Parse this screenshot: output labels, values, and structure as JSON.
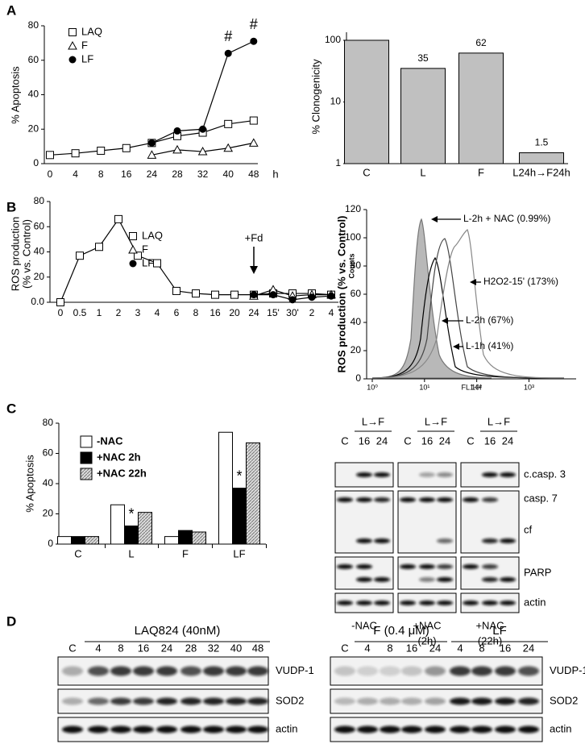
{
  "panels": {
    "a": "A",
    "b": "B",
    "c": "C",
    "d": "D"
  },
  "chart_data": [
    {
      "type": "line",
      "ylabel": "% Apoptosis",
      "x_unit": "h",
      "categories": [
        "0",
        "4",
        "8",
        "16",
        "24",
        "28",
        "32",
        "40",
        "48"
      ],
      "series": [
        {
          "name": "LAQ",
          "marker": "square",
          "color": "#000000",
          "values": [
            5,
            6,
            7.5,
            9,
            12,
            16,
            18,
            23,
            25
          ]
        },
        {
          "name": "F",
          "marker": "triangle",
          "color": "#000000",
          "values": [
            null,
            null,
            null,
            null,
            5,
            8,
            7,
            9,
            12
          ]
        },
        {
          "name": "LF",
          "marker": "circle",
          "color": "#000000",
          "values": [
            null,
            null,
            null,
            null,
            12,
            19,
            20,
            64,
            71
          ]
        }
      ],
      "ylim": [
        0,
        80
      ],
      "yticks": [
        0,
        20,
        40,
        60,
        80
      ],
      "annotations": [
        "#",
        "#"
      ]
    },
    {
      "type": "bar",
      "ylabel": "% Clonogenicity",
      "log": true,
      "categories": [
        "C",
        "L",
        "F",
        "L24h→F24h"
      ],
      "values": [
        100,
        35,
        62,
        1.5
      ],
      "value_labels": [
        null,
        "35",
        "62",
        "1.5"
      ],
      "color": "#c0c0c0",
      "ylim": [
        1,
        135
      ],
      "yticks": [
        1,
        10,
        100
      ]
    },
    {
      "type": "line",
      "ylabel": [
        "ROS production",
        "(% vs. Control)"
      ],
      "categories": [
        "0",
        "0.5",
        "1",
        "2",
        "3",
        "4",
        "6",
        "8",
        "16",
        "20",
        "24",
        "15'",
        "30'",
        "2",
        "4"
      ],
      "series": [
        {
          "name": "LAQ",
          "marker": "square",
          "color": "#000000",
          "values": [
            0,
            37,
            44,
            66,
            37,
            31,
            9,
            7,
            6,
            6,
            6,
            7,
            7,
            7,
            6
          ]
        },
        {
          "name": "F",
          "marker": "triangle",
          "color": "#000000",
          "values": [
            null,
            null,
            null,
            null,
            null,
            null,
            null,
            null,
            null,
            null,
            5,
            10,
            5,
            6,
            6
          ]
        },
        {
          "name": "LF",
          "marker": "circle",
          "color": "#000000",
          "values": [
            null,
            null,
            null,
            null,
            null,
            null,
            null,
            null,
            null,
            null,
            6,
            6,
            2,
            4,
            5
          ]
        }
      ],
      "ylim": [
        0,
        80
      ],
      "yticks": [
        {
          "value": 0,
          "label": "0.0"
        },
        20,
        40,
        60,
        80
      ],
      "annotations": [
        "+Fd"
      ]
    },
    {
      "type": "flow",
      "ylabel": "ROS production (% vs. Control)",
      "counts_label": "Counts",
      "xlabel": "FL1-H",
      "log_x": true,
      "xlim": [
        1,
        8000
      ],
      "xticks": [
        {
          "value": 1,
          "label": "10⁰"
        },
        {
          "value": 10,
          "label": "10¹"
        },
        {
          "value": 100,
          "label": "10²"
        },
        {
          "value": 1000,
          "label": "10³"
        }
      ],
      "ylim": [
        0,
        120
      ],
      "yticks": [
        0,
        20,
        40,
        60,
        80,
        100,
        120
      ],
      "annotations": [
        "L-2h + NAC (0.99%)",
        "H2O2-15' (173%)",
        "L-2h (67%)",
        "L-1h (41%)"
      ]
    },
    {
      "type": "grouped-bar",
      "ylabel": "% Apoptosis",
      "categories": [
        "C",
        "L",
        "F",
        "LF"
      ],
      "series": [
        {
          "name": "-NAC",
          "color": "#ffffff",
          "values": [
            5,
            26,
            5,
            74
          ]
        },
        {
          "name": "+NAC 2h",
          "color": "#000000",
          "values": [
            5,
            12,
            9,
            37
          ]
        },
        {
          "name": "+NAC 22h",
          "color": "#bbbbbb",
          "hatch": true,
          "values": [
            5,
            21,
            8,
            67
          ]
        }
      ],
      "ylim": [
        0,
        80
      ],
      "yticks": [
        0,
        20,
        40,
        60,
        80
      ],
      "annotations": [
        "*",
        "*"
      ]
    }
  ],
  "blots_c": {
    "groups": [
      {
        "header": "L→F",
        "lanes": [
          "C",
          "16",
          "24"
        ],
        "name": [
          "-NAC"
        ]
      },
      {
        "header": "L→F",
        "lanes": [
          "C",
          "16",
          "24"
        ],
        "name": [
          "+NAC",
          "(2h)"
        ]
      },
      {
        "header": "L→F",
        "lanes": [
          "C",
          "16",
          "24"
        ],
        "name": [
          "+NAC",
          "(22h)"
        ]
      }
    ],
    "rows": [
      "c.casp. 3",
      "casp. 7",
      "cf",
      "PARP",
      "actin"
    ]
  },
  "blots_d": {
    "left_header": "LAQ824 (40nM)",
    "left_lanes": [
      "C",
      "4",
      "8",
      "16",
      "24",
      "28",
      "32",
      "40",
      "48"
    ],
    "right_headers": [
      "F (0.4 μM)",
      "LF"
    ],
    "right_lanes": [
      "C",
      "4",
      "8",
      "16",
      "24",
      "4",
      "8",
      "16",
      "24"
    ],
    "rows": [
      "VUDP-1",
      "SOD2",
      "actin"
    ]
  }
}
